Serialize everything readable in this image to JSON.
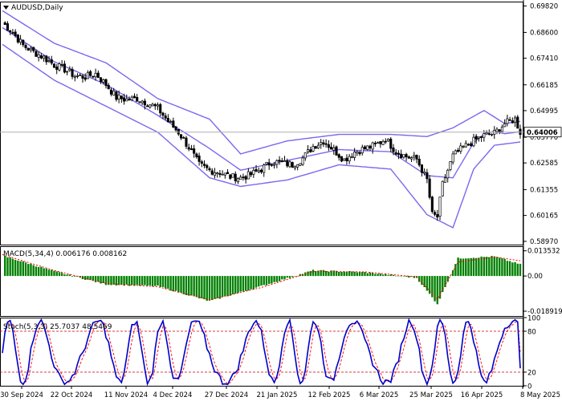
{
  "colors": {
    "background": "#ffffff",
    "candle": "#000000",
    "bollinger": "#7b68ee",
    "macd_hist": "#008000",
    "macd_signal": "#ff0000",
    "stoch_main": "#0000cc",
    "stoch_signal": "#ff0000",
    "current_price_bg": "#ffffff"
  },
  "main_panel": {
    "symbol_menu_icon": "triangle-down-icon",
    "title": "AUDUSD,Daily",
    "price_labels": [
      "0.69820",
      "0.68600",
      "0.67410",
      "0.66185",
      "0.64995",
      "0.63770",
      "0.62585",
      "0.61355",
      "0.60165",
      "0.58970"
    ],
    "current_price": "0.64006"
  },
  "macd_panel": {
    "title": "MACD(5,34,4) 0.006176 0.008162",
    "labels": [
      "0.013532",
      "0.00",
      "-0.018919"
    ]
  },
  "stoch_panel": {
    "title": "Stoch(5,3,3) 25.7037 48.5469",
    "labels": [
      "100",
      "80",
      "20",
      "0"
    ]
  },
  "date_labels": [
    "30 Sep 2024",
    "22 Oct 2024",
    "11 Nov 2024",
    "4 Dec 2024",
    "27 Dec 2024",
    "21 Jan 2025",
    "12 Feb 2025",
    "6 Mar 2025",
    "25 Mar 2025",
    "16 Apr 2025",
    "8 May 2025"
  ],
  "chart_data": [
    {
      "type": "candlestick",
      "title": "AUDUSD,Daily",
      "y_ticks": [
        0.6982,
        0.686,
        0.6741,
        0.66185,
        0.64995,
        0.6377,
        0.62585,
        0.61355,
        0.60165,
        0.5897
      ],
      "ylim": [
        0.5882,
        0.7002
      ],
      "x_tick_labels": [
        "30 Sep 2024",
        "22 Oct 2024",
        "11 Nov 2024",
        "4 Dec 2024",
        "27 Dec 2024",
        "21 Jan 2025",
        "12 Feb 2025",
        "6 Mar 2025",
        "25 Mar 2025",
        "16 Apr 2025",
        "8 May 2025"
      ],
      "close_trend": [
        [
          0,
          0.6905
        ],
        [
          4,
          0.686
        ],
        [
          8,
          0.68
        ],
        [
          12,
          0.677
        ],
        [
          16,
          0.6745
        ],
        [
          20,
          0.671
        ],
        [
          24,
          0.669
        ],
        [
          28,
          0.666
        ],
        [
          32,
          0.6655
        ],
        [
          36,
          0.667
        ],
        [
          40,
          0.662
        ],
        [
          44,
          0.656
        ],
        [
          48,
          0.655
        ],
        [
          52,
          0.6555
        ],
        [
          56,
          0.6535
        ],
        [
          60,
          0.651
        ],
        [
          64,
          0.645
        ],
        [
          68,
          0.64
        ],
        [
          72,
          0.633
        ],
        [
          76,
          0.625
        ],
        [
          80,
          0.6225
        ],
        [
          84,
          0.6215
        ],
        [
          88,
          0.6195
        ],
        [
          92,
          0.619
        ],
        [
          96,
          0.6205
        ],
        [
          100,
          0.623
        ],
        [
          104,
          0.6265
        ],
        [
          108,
          0.6258
        ],
        [
          112,
          0.625
        ],
        [
          116,
          0.628
        ],
        [
          120,
          0.6335
        ],
        [
          124,
          0.636
        ],
        [
          128,
          0.6318
        ],
        [
          132,
          0.6273
        ],
        [
          136,
          0.631
        ],
        [
          140,
          0.6325
        ],
        [
          144,
          0.634
        ],
        [
          148,
          0.637
        ],
        [
          152,
          0.631
        ],
        [
          156,
          0.6288
        ],
        [
          160,
          0.6275
        ],
        [
          164,
          0.618
        ],
        [
          166,
          0.602
        ],
        [
          168,
          0.601
        ],
        [
          170,
          0.616
        ],
        [
          174,
          0.629
        ],
        [
          178,
          0.633
        ],
        [
          182,
          0.636
        ],
        [
          186,
          0.6385
        ],
        [
          190,
          0.6395
        ],
        [
          194,
          0.644
        ],
        [
          198,
          0.646
        ],
        [
          200,
          0.64
        ]
      ],
      "bollinger": {
        "upper_trend": [
          [
            0,
            0.696
          ],
          [
            20,
            0.681
          ],
          [
            40,
            0.672
          ],
          [
            60,
            0.6555
          ],
          [
            80,
            0.646
          ],
          [
            92,
            0.63
          ],
          [
            110,
            0.636
          ],
          [
            130,
            0.639
          ],
          [
            150,
            0.639
          ],
          [
            164,
            0.638
          ],
          [
            174,
            0.642
          ],
          [
            186,
            0.65
          ],
          [
            194,
            0.644
          ],
          [
            200,
            0.645
          ]
        ],
        "lower_trend": [
          [
            0,
            0.6805
          ],
          [
            20,
            0.664
          ],
          [
            40,
            0.652
          ],
          [
            60,
            0.64
          ],
          [
            80,
            0.619
          ],
          [
            92,
            0.615
          ],
          [
            110,
            0.618
          ],
          [
            130,
            0.625
          ],
          [
            150,
            0.623
          ],
          [
            164,
            0.602
          ],
          [
            174,
            0.596
          ],
          [
            182,
            0.623
          ],
          [
            190,
            0.634
          ],
          [
            200,
            0.6355
          ]
        ]
      }
    },
    {
      "type": "bar",
      "title": "MACD(5,34,4) 0.006176 0.008162",
      "series": [
        {
          "name": "MACD",
          "values_trend": [
            [
              0,
              0.011
            ],
            [
              20,
              0.0025
            ],
            [
              40,
              -0.0045
            ],
            [
              60,
              -0.0055
            ],
            [
              80,
              -0.0135
            ],
            [
              100,
              -0.0055
            ],
            [
              120,
              0.003
            ],
            [
              140,
              0.002
            ],
            [
              160,
              -0.001
            ],
            [
              168,
              -0.015
            ],
            [
              176,
              0.0095
            ],
            [
              190,
              0.0105
            ],
            [
              200,
              0.0062
            ]
          ]
        },
        {
          "name": "Signal",
          "values_trend": [
            [
              0,
              0.0115
            ],
            [
              20,
              0.003
            ],
            [
              40,
              -0.004
            ],
            [
              60,
              -0.0058
            ],
            [
              80,
              -0.0128
            ],
            [
              100,
              -0.0062
            ],
            [
              120,
              0.0024
            ],
            [
              140,
              0.0022
            ],
            [
              160,
              -0.0005
            ],
            [
              168,
              -0.0125
            ],
            [
              176,
              0.0075
            ],
            [
              190,
              0.0102
            ],
            [
              200,
              0.0082
            ]
          ]
        }
      ],
      "y_ticks": [
        0.013532,
        0.0,
        -0.018919
      ],
      "ylim": [
        -0.0215,
        0.016
      ]
    },
    {
      "type": "line",
      "title": "Stoch(5,3,3) 25.7037 48.5469",
      "levels": [
        80,
        20
      ],
      "y_ticks": [
        100,
        80,
        20,
        0
      ],
      "ylim": [
        0,
        100
      ],
      "series": [
        {
          "name": "Main",
          "values_last": 25.7037
        },
        {
          "name": "Signal",
          "values_last": 48.5469
        }
      ]
    }
  ]
}
